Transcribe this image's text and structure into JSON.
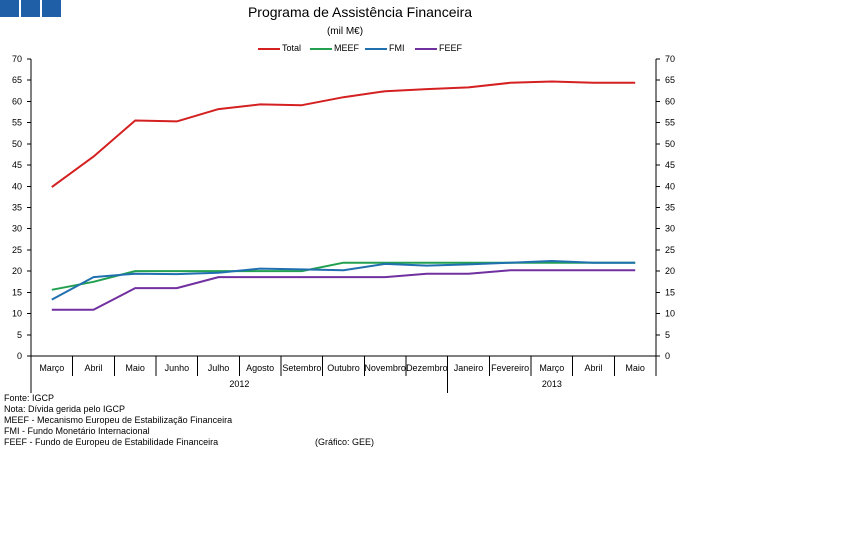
{
  "header": {
    "title": "Programa de Assistência Financeira",
    "subtitle": "(mil M€)"
  },
  "colors": {
    "logo": "#1f5fa8"
  },
  "chart_data": {
    "type": "line",
    "title": "Programa de Assistência Financeira",
    "subtitle": "(mil M€)",
    "categories": [
      "Março",
      "Abril",
      "Maio",
      "Junho",
      "Julho",
      "Agosto",
      "Setembro",
      "Outubro",
      "Novembro",
      "Dezembro",
      "Janeiro",
      "Fevereiro",
      "Março",
      "Abril",
      "Maio"
    ],
    "year_groups": [
      {
        "label": "2012",
        "count": 10
      },
      {
        "label": "2013",
        "count": 5
      }
    ],
    "ylim": [
      0,
      70
    ],
    "yticks": [
      0,
      5,
      10,
      15,
      20,
      25,
      30,
      35,
      40,
      45,
      50,
      55,
      60,
      65,
      70
    ],
    "secondary_y_axis": true,
    "grid": false,
    "legend_position": "top",
    "series": [
      {
        "name": "Total",
        "color": "#d42020",
        "values": [
          39.8,
          47.0,
          55.5,
          55.3,
          58.2,
          59.3,
          59.1,
          61.0,
          62.4,
          62.9,
          63.3,
          64.4,
          64.7,
          64.4,
          64.4
        ]
      },
      {
        "name": "MEEF",
        "color": "#22a050",
        "values": [
          15.6,
          17.5,
          20.0,
          20.0,
          20.0,
          20.0,
          20.0,
          22.0,
          22.0,
          22.0,
          22.0,
          22.0,
          22.0,
          22.0,
          22.0
        ]
      },
      {
        "name": "FMI",
        "color": "#2070b0",
        "values": [
          13.3,
          18.6,
          19.4,
          19.3,
          19.6,
          20.6,
          20.4,
          20.2,
          21.7,
          21.3,
          21.6,
          22.0,
          22.4,
          22.0,
          22.0
        ]
      },
      {
        "name": "FEEF",
        "color": "#7030a0",
        "values": [
          10.9,
          10.9,
          16.0,
          16.0,
          18.6,
          18.6,
          18.6,
          18.6,
          18.6,
          19.4,
          19.4,
          20.2,
          20.2,
          20.2,
          20.2
        ]
      }
    ]
  },
  "notes": [
    "Fonte: IGCP",
    "Nota: Dívida gerida pelo IGCP",
    "MEEF - Mecanismo Europeu de Estabilização Financeira",
    "FMI - Fundo Monetário Internacional",
    "FEEF - Fundo de Europeu de Estabilidade Financeira"
  ],
  "credit": "(Gráfico: GEE)"
}
